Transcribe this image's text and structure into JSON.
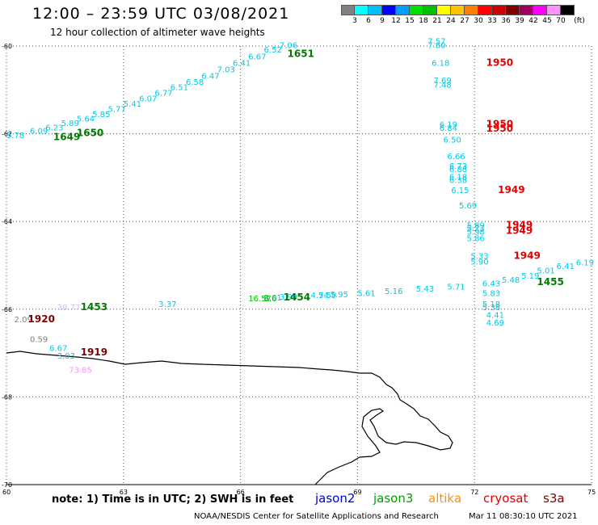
{
  "header": {
    "title": "12:00 – 23:59 UTC 03/08/2021",
    "subtitle": "12 hour collection of altimeter wave heights"
  },
  "legend": {
    "colors": [
      "#808080",
      "#00ffff",
      "#00bfff",
      "#0000ff",
      "#00a0ff",
      "#00e000",
      "#00c000",
      "#ffff00",
      "#ffc000",
      "#ff8000",
      "#ff0000",
      "#d00000",
      "#800000",
      "#a00060",
      "#ff00ff",
      "#ff90ff",
      "#000000"
    ],
    "labels": [
      "3",
      "6",
      "9",
      "12",
      "15",
      "18",
      "21",
      "24",
      "27",
      "30",
      "33",
      "36",
      "39",
      "42",
      "45",
      "70",
      "(ft)"
    ]
  },
  "map": {
    "lat_range": [
      -70,
      -60
    ],
    "lon_range": [
      60,
      75
    ],
    "lat_ticks": [
      "-60",
      "-62",
      "-64",
      "-66",
      "-68",
      "-70"
    ],
    "lon_ticks": [
      "60",
      "63",
      "66",
      "69",
      "72",
      "75"
    ],
    "time_labels": [
      {
        "text": "1651",
        "lon": 67.2,
        "lat": -60.25,
        "color": "#007a00"
      },
      {
        "text": "1650",
        "lon": 61.8,
        "lat": -62.05,
        "color": "#007a00"
      },
      {
        "text": "1649",
        "lon": 61.2,
        "lat": -62.15,
        "color": "#007a00"
      },
      {
        "text": "1950",
        "lon": 72.3,
        "lat": -60.45,
        "color": "#e00000"
      },
      {
        "text": "1950",
        "lon": 72.3,
        "lat": -61.85,
        "color": "#e00000"
      },
      {
        "text": "1950",
        "lon": 72.3,
        "lat": -61.95,
        "color": "#e00000"
      },
      {
        "text": "1949",
        "lon": 72.6,
        "lat": -63.35,
        "color": "#e00000"
      },
      {
        "text": "1949",
        "lon": 72.8,
        "lat": -64.15,
        "color": "#e00000"
      },
      {
        "text": "1949",
        "lon": 72.8,
        "lat": -64.28,
        "color": "#e00000"
      },
      {
        "text": "1949",
        "lon": 73.0,
        "lat": -64.85,
        "color": "#e00000"
      },
      {
        "text": "1455",
        "lon": 73.6,
        "lat": -65.45,
        "color": "#007a00"
      },
      {
        "text": "1454",
        "lon": 67.1,
        "lat": -65.8,
        "color": "#007a00"
      },
      {
        "text": "1453",
        "lon": 61.9,
        "lat": -66.02,
        "color": "#007a00"
      },
      {
        "text": "1920",
        "lon": 60.55,
        "lat": -66.3,
        "color": "#800000"
      },
      {
        "text": "1919",
        "lon": 61.9,
        "lat": -67.05,
        "color": "#800000"
      }
    ],
    "wave_heights": [
      {
        "text": "7.06",
        "lon": 67.0,
        "lat": -60.05,
        "color": "#00c8e8"
      },
      {
        "text": "6.52",
        "lon": 66.6,
        "lat": -60.15,
        "color": "#00c8e8"
      },
      {
        "text": "6.67",
        "lon": 66.2,
        "lat": -60.3,
        "color": "#00c8e8"
      },
      {
        "text": "6.41",
        "lon": 65.8,
        "lat": -60.45,
        "color": "#00c8e8"
      },
      {
        "text": "7.03",
        "lon": 65.4,
        "lat": -60.6,
        "color": "#00c8e8"
      },
      {
        "text": "6.47",
        "lon": 65.0,
        "lat": -60.75,
        "color": "#00c8e8"
      },
      {
        "text": "6.58",
        "lon": 64.6,
        "lat": -60.88,
        "color": "#00c8e8"
      },
      {
        "text": "6.51",
        "lon": 64.2,
        "lat": -61.0,
        "color": "#00c8e8"
      },
      {
        "text": "6.77",
        "lon": 63.8,
        "lat": -61.13,
        "color": "#00c8e8"
      },
      {
        "text": "6.07",
        "lon": 63.4,
        "lat": -61.26,
        "color": "#00c8e8"
      },
      {
        "text": "5.41",
        "lon": 63.0,
        "lat": -61.38,
        "color": "#00c8e8"
      },
      {
        "text": "5.77",
        "lon": 62.6,
        "lat": -61.5,
        "color": "#00c8e8"
      },
      {
        "text": "5.85",
        "lon": 62.2,
        "lat": -61.62,
        "color": "#00c8e8"
      },
      {
        "text": "5.64",
        "lon": 61.8,
        "lat": -61.72,
        "color": "#00c8e8"
      },
      {
        "text": "5.89",
        "lon": 61.4,
        "lat": -61.82,
        "color": "#00c8e8"
      },
      {
        "text": "6.23",
        "lon": 61.0,
        "lat": -61.92,
        "color": "#00c8e8"
      },
      {
        "text": "6.09",
        "lon": 60.6,
        "lat": -62.0,
        "color": "#00c8e8"
      },
      {
        "text": "5.78",
        "lon": 60.0,
        "lat": -62.1,
        "color": "#00c8e8"
      },
      {
        "text": "7.57",
        "lon": 70.8,
        "lat": -59.95,
        "color": "#00c8e8"
      },
      {
        "text": "7.80",
        "lon": 70.8,
        "lat": -60.05,
        "color": "#00c8e8"
      },
      {
        "text": "6.18",
        "lon": 70.9,
        "lat": -60.45,
        "color": "#00c8e8"
      },
      {
        "text": "7.69",
        "lon": 70.95,
        "lat": -60.85,
        "color": "#00c8e8"
      },
      {
        "text": "7.48",
        "lon": 70.95,
        "lat": -60.95,
        "color": "#00c8e8"
      },
      {
        "text": "6.19",
        "lon": 71.1,
        "lat": -61.85,
        "color": "#00c8e8"
      },
      {
        "text": "6.84",
        "lon": 71.1,
        "lat": -61.93,
        "color": "#00c8e8"
      },
      {
        "text": "6.50",
        "lon": 71.2,
        "lat": -62.2,
        "color": "#00c8e8"
      },
      {
        "text": "6.66",
        "lon": 71.3,
        "lat": -62.58,
        "color": "#00c8e8"
      },
      {
        "text": "6.73",
        "lon": 71.35,
        "lat": -62.8,
        "color": "#00c8e8"
      },
      {
        "text": "6.88",
        "lon": 71.35,
        "lat": -62.87,
        "color": "#00c8e8"
      },
      {
        "text": "6.18",
        "lon": 71.35,
        "lat": -63.05,
        "color": "#00c8e8"
      },
      {
        "text": "6.38",
        "lon": 71.35,
        "lat": -63.12,
        "color": "#00c8e8"
      },
      {
        "text": "6.15",
        "lon": 71.4,
        "lat": -63.35,
        "color": "#00c8e8"
      },
      {
        "text": "5.69",
        "lon": 71.6,
        "lat": -63.7,
        "color": "#00c8e8"
      },
      {
        "text": "5.89",
        "lon": 71.8,
        "lat": -64.15,
        "color": "#00c8e8"
      },
      {
        "text": "5.23",
        "lon": 71.8,
        "lat": -64.22,
        "color": "#00c8e8"
      },
      {
        "text": "5.98",
        "lon": 71.8,
        "lat": -64.3,
        "color": "#00c8e8"
      },
      {
        "text": "5.86",
        "lon": 71.8,
        "lat": -64.45,
        "color": "#00c8e8"
      },
      {
        "text": "5.33",
        "lon": 71.9,
        "lat": -64.85,
        "color": "#00c8e8"
      },
      {
        "text": "5.90",
        "lon": 71.9,
        "lat": -64.98,
        "color": "#00c8e8"
      },
      {
        "text": "6.19",
        "lon": 74.6,
        "lat": -65.0,
        "color": "#00c8e8"
      },
      {
        "text": "6.41",
        "lon": 74.1,
        "lat": -65.08,
        "color": "#00c8e8"
      },
      {
        "text": "5.01",
        "lon": 73.6,
        "lat": -65.18,
        "color": "#00c8e8"
      },
      {
        "text": "5.19",
        "lon": 73.2,
        "lat": -65.3,
        "color": "#00c8e8"
      },
      {
        "text": "5.48",
        "lon": 72.7,
        "lat": -65.4,
        "color": "#00c8e8"
      },
      {
        "text": "6.43",
        "lon": 72.2,
        "lat": -65.48,
        "color": "#00c8e8"
      },
      {
        "text": "5.83",
        "lon": 72.2,
        "lat": -65.7,
        "color": "#00c8e8"
      },
      {
        "text": "5.71",
        "lon": 71.3,
        "lat": -65.55,
        "color": "#00c8e8"
      },
      {
        "text": "5.43",
        "lon": 70.5,
        "lat": -65.6,
        "color": "#00c8e8"
      },
      {
        "text": "5.16",
        "lon": 69.7,
        "lat": -65.65,
        "color": "#00c8e8"
      },
      {
        "text": "5.61",
        "lon": 69.0,
        "lat": -65.7,
        "color": "#00c8e8"
      },
      {
        "text": "5.95",
        "lon": 68.3,
        "lat": -65.73,
        "color": "#00c8e8"
      },
      {
        "text": "4.74",
        "lon": 67.8,
        "lat": -65.75,
        "color": "#00c8e8"
      },
      {
        "text": "5.59",
        "lon": 68.0,
        "lat": -65.75,
        "color": "#00c8e8"
      },
      {
        "text": "3.99",
        "lon": 67.0,
        "lat": -65.78,
        "color": "#00c8e8"
      },
      {
        "text": "3.01",
        "lon": 66.6,
        "lat": -65.8,
        "color": "#00c8e8"
      },
      {
        "text": "16.57",
        "lon": 66.2,
        "lat": -65.82,
        "color": "#00c000"
      },
      {
        "text": "8.6",
        "lon": 66.6,
        "lat": -65.82,
        "color": "#00c000"
      },
      {
        "text": "5.18",
        "lon": 72.2,
        "lat": -65.95,
        "color": "#00c8e8"
      },
      {
        "text": "5.38",
        "lon": 72.2,
        "lat": -66.02,
        "color": "#00c8e8"
      },
      {
        "text": "4.41",
        "lon": 72.3,
        "lat": -66.2,
        "color": "#00c8e8"
      },
      {
        "text": "4.69",
        "lon": 72.3,
        "lat": -66.37,
        "color": "#00c8e8"
      },
      {
        "text": "3.37",
        "lon": 63.9,
        "lat": -65.95,
        "color": "#00c8e8"
      },
      {
        "text": "2.09",
        "lon": 60.2,
        "lat": -66.3,
        "color": "#808080"
      },
      {
        "text": "0.59",
        "lon": 60.6,
        "lat": -66.75,
        "color": "#808080"
      },
      {
        "text": "6.67",
        "lon": 61.1,
        "lat": -66.95,
        "color": "#00c8e8"
      },
      {
        "text": "3.03",
        "lon": 61.3,
        "lat": -67.13,
        "color": "#00c8e8"
      },
      {
        "text": "73.85",
        "lon": 61.6,
        "lat": -67.45,
        "color": "#ff90ff"
      },
      {
        "text": "38.77",
        "lon": 61.3,
        "lat": -66.02,
        "color": "#c8c8ff"
      }
    ]
  },
  "footer": {
    "note": "note:  1) Time is in UTC;  2) SWH is in feet",
    "satellites": [
      {
        "name": "jason2",
        "color": "#0000e0"
      },
      {
        "name": "jason3",
        "color": "#00a000"
      },
      {
        "name": "altika",
        "color": "#ff9000"
      },
      {
        "name": "cryosat",
        "color": "#e00000"
      },
      {
        "name": "s3a",
        "color": "#800000"
      }
    ],
    "credit": "NOAA/NESDIS Center for Satellite Applications and Research",
    "generated": "Mar 11 08:30:10 UTC 2021"
  }
}
